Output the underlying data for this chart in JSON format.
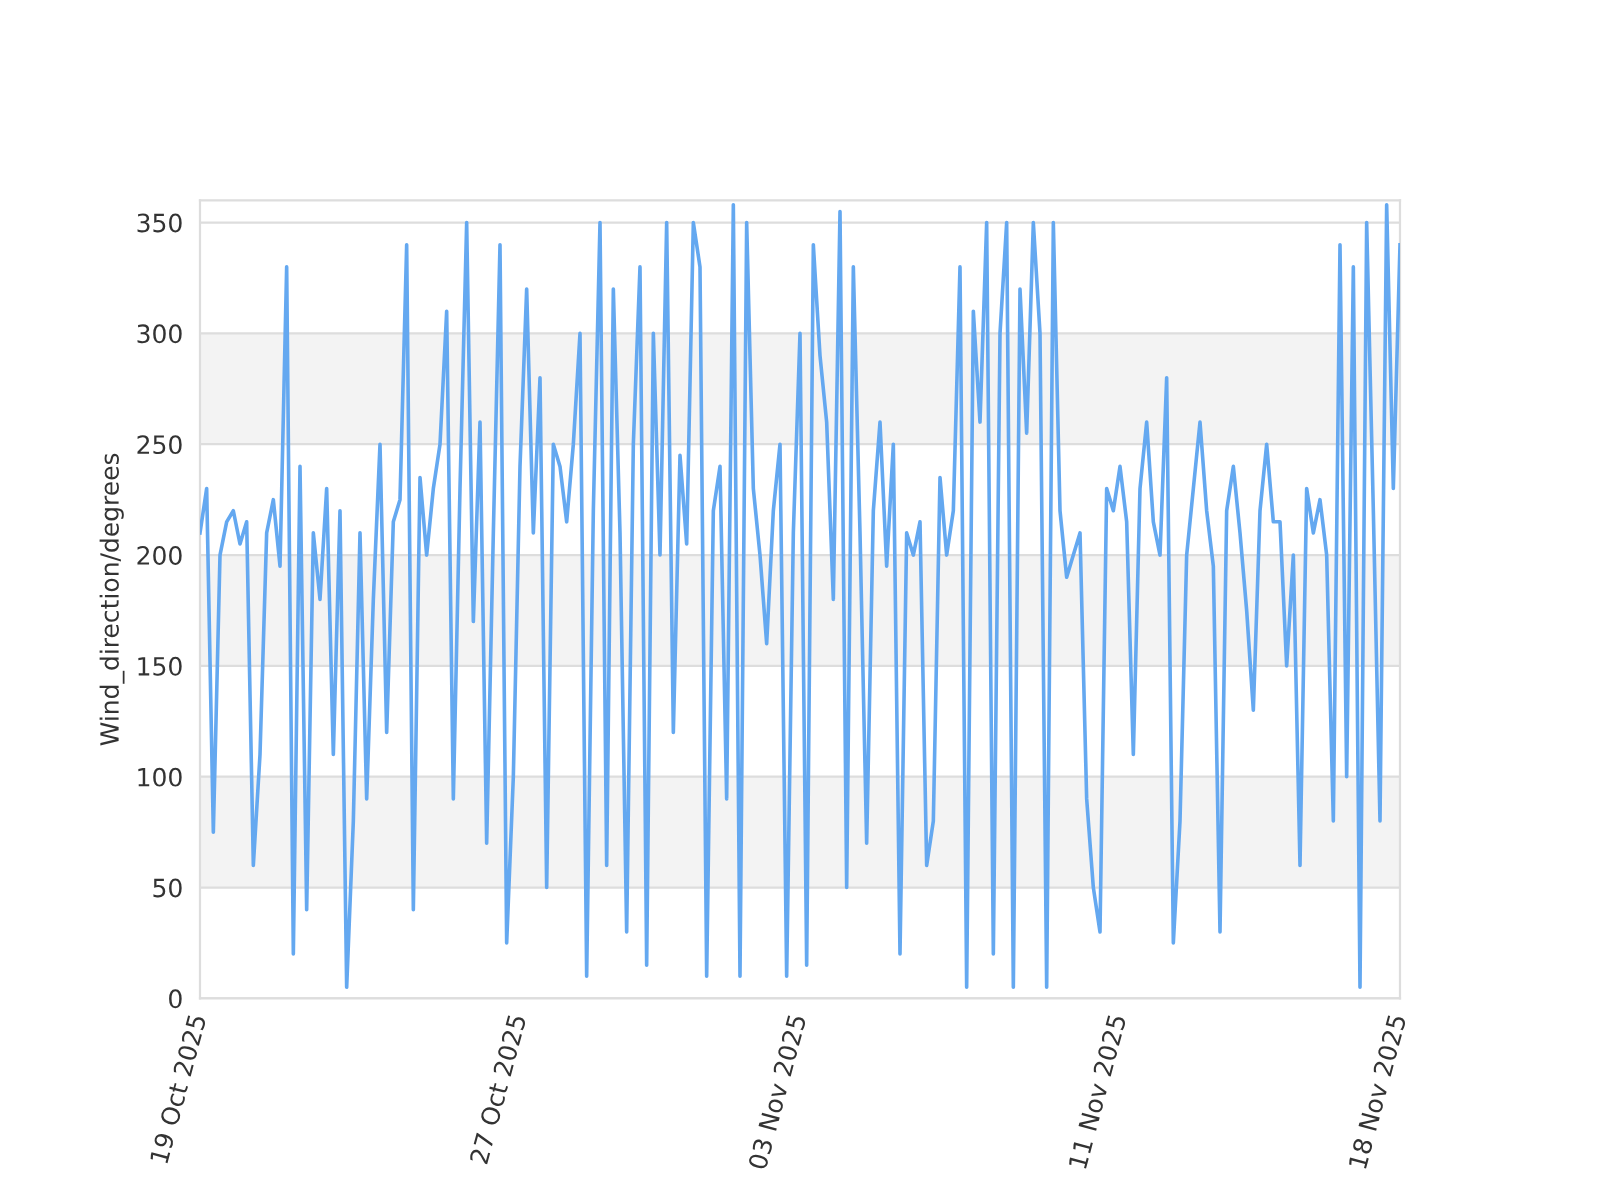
{
  "chart_data": {
    "type": "line",
    "ylabel": "Wind_direction/degrees",
    "x": [
      "2025-10-19T00:00",
      "2025-10-19T04:00",
      "2025-10-19T08:00",
      "2025-10-19T12:00",
      "2025-10-19T16:00",
      "2025-10-19T20:00",
      "2025-10-20T00:00",
      "2025-10-20T04:00",
      "2025-10-20T08:00",
      "2025-10-20T12:00",
      "2025-10-20T16:00",
      "2025-10-20T20:00",
      "2025-10-21T00:00",
      "2025-10-21T04:00",
      "2025-10-21T08:00",
      "2025-10-21T12:00",
      "2025-10-21T16:00",
      "2025-10-21T20:00",
      "2025-10-22T00:00",
      "2025-10-22T04:00",
      "2025-10-22T08:00",
      "2025-10-22T12:00",
      "2025-10-22T16:00",
      "2025-10-22T20:00",
      "2025-10-23T00:00",
      "2025-10-23T04:00",
      "2025-10-23T08:00",
      "2025-10-23T12:00",
      "2025-10-23T16:00",
      "2025-10-23T20:00",
      "2025-10-24T00:00",
      "2025-10-24T04:00",
      "2025-10-24T08:00",
      "2025-10-24T12:00",
      "2025-10-24T16:00",
      "2025-10-24T20:00",
      "2025-10-25T00:00",
      "2025-10-25T04:00",
      "2025-10-25T08:00",
      "2025-10-25T12:00",
      "2025-10-25T16:00",
      "2025-10-25T20:00",
      "2025-10-26T00:00",
      "2025-10-26T04:00",
      "2025-10-26T08:00",
      "2025-10-26T12:00",
      "2025-10-26T16:00",
      "2025-10-26T20:00",
      "2025-10-27T00:00",
      "2025-10-27T04:00",
      "2025-10-27T08:00",
      "2025-10-27T12:00",
      "2025-10-27T16:00",
      "2025-10-27T20:00",
      "2025-10-28T00:00",
      "2025-10-28T04:00",
      "2025-10-28T08:00",
      "2025-10-28T12:00",
      "2025-10-28T16:00",
      "2025-10-28T20:00",
      "2025-10-29T00:00",
      "2025-10-29T04:00",
      "2025-10-29T08:00",
      "2025-10-29T12:00",
      "2025-10-29T16:00",
      "2025-10-29T20:00",
      "2025-10-30T00:00",
      "2025-10-30T04:00",
      "2025-10-30T08:00",
      "2025-10-30T12:00",
      "2025-10-30T16:00",
      "2025-10-30T20:00",
      "2025-10-31T00:00",
      "2025-10-31T04:00",
      "2025-10-31T08:00",
      "2025-10-31T12:00",
      "2025-10-31T16:00",
      "2025-10-31T20:00",
      "2025-11-01T00:00",
      "2025-11-01T04:00",
      "2025-11-01T08:00",
      "2025-11-01T12:00",
      "2025-11-01T16:00",
      "2025-11-01T20:00",
      "2025-11-02T00:00",
      "2025-11-02T04:00",
      "2025-11-02T08:00",
      "2025-11-02T12:00",
      "2025-11-02T16:00",
      "2025-11-02T20:00",
      "2025-11-03T00:00",
      "2025-11-03T04:00",
      "2025-11-03T08:00",
      "2025-11-03T12:00",
      "2025-11-03T16:00",
      "2025-11-03T20:00",
      "2025-11-04T00:00",
      "2025-11-04T04:00",
      "2025-11-04T08:00",
      "2025-11-04T12:00",
      "2025-11-04T16:00",
      "2025-11-04T20:00",
      "2025-11-05T00:00",
      "2025-11-05T04:00",
      "2025-11-05T08:00",
      "2025-11-05T12:00",
      "2025-11-05T16:00",
      "2025-11-05T20:00",
      "2025-11-06T00:00",
      "2025-11-06T04:00",
      "2025-11-06T08:00",
      "2025-11-06T12:00",
      "2025-11-06T16:00",
      "2025-11-06T20:00",
      "2025-11-07T00:00",
      "2025-11-07T04:00",
      "2025-11-07T08:00",
      "2025-11-07T12:00",
      "2025-11-07T16:00",
      "2025-11-07T20:00",
      "2025-11-08T00:00",
      "2025-11-08T04:00",
      "2025-11-08T08:00",
      "2025-11-08T12:00",
      "2025-11-08T16:00",
      "2025-11-08T20:00",
      "2025-11-09T00:00",
      "2025-11-09T04:00",
      "2025-11-09T08:00",
      "2025-11-09T12:00",
      "2025-11-09T16:00",
      "2025-11-09T20:00",
      "2025-11-10T00:00",
      "2025-11-10T04:00",
      "2025-11-10T08:00",
      "2025-11-10T12:00",
      "2025-11-10T16:00",
      "2025-11-10T20:00",
      "2025-11-11T00:00",
      "2025-11-11T04:00",
      "2025-11-11T08:00",
      "2025-11-11T12:00",
      "2025-11-11T16:00",
      "2025-11-11T20:00",
      "2025-11-12T00:00",
      "2025-11-12T04:00",
      "2025-11-12T08:00",
      "2025-11-12T12:00",
      "2025-11-12T16:00",
      "2025-11-12T20:00",
      "2025-11-13T00:00",
      "2025-11-13T04:00",
      "2025-11-13T08:00",
      "2025-11-13T12:00",
      "2025-11-13T16:00",
      "2025-11-13T20:00",
      "2025-11-14T00:00",
      "2025-11-14T04:00",
      "2025-11-14T08:00",
      "2025-11-14T12:00",
      "2025-11-14T16:00",
      "2025-11-14T20:00",
      "2025-11-15T00:00",
      "2025-11-15T04:00",
      "2025-11-15T08:00",
      "2025-11-15T12:00",
      "2025-11-15T16:00",
      "2025-11-15T20:00",
      "2025-11-16T00:00",
      "2025-11-16T04:00",
      "2025-11-16T08:00",
      "2025-11-16T12:00",
      "2025-11-16T16:00",
      "2025-11-16T20:00",
      "2025-11-17T00:00",
      "2025-11-17T04:00",
      "2025-11-17T08:00",
      "2025-11-17T12:00",
      "2025-11-17T16:00",
      "2025-11-17T20:00",
      "2025-11-18T00:00"
    ],
    "series": [
      {
        "color": "#64a8f0",
        "values": [
          210,
          230,
          75,
          200,
          215,
          220,
          205,
          215,
          60,
          110,
          210,
          225,
          195,
          330,
          20,
          240,
          40,
          210,
          180,
          230,
          110,
          220,
          5,
          80,
          210,
          90,
          180,
          250,
          120,
          215,
          225,
          340,
          40,
          235,
          200,
          230,
          250,
          310,
          90,
          230,
          350,
          170,
          260,
          70,
          210,
          340,
          25,
          100,
          240,
          320,
          210,
          280,
          50,
          250,
          240,
          215,
          250,
          300,
          10,
          220,
          350,
          60,
          320,
          210,
          30,
          250,
          330,
          15,
          300,
          200,
          350,
          120,
          245,
          205,
          350,
          330,
          10,
          220,
          240,
          90,
          358,
          10,
          350,
          230,
          200,
          160,
          220,
          250,
          10,
          210,
          300,
          15,
          340,
          290,
          260,
          180,
          355,
          50,
          330,
          210,
          70,
          220,
          260,
          195,
          250,
          20,
          210,
          200,
          215,
          60,
          80,
          235,
          200,
          220,
          330,
          5,
          310,
          260,
          350,
          20,
          300,
          350,
          5,
          320,
          255,
          350,
          300,
          5,
          350,
          220,
          190,
          200,
          210,
          90,
          50,
          30,
          230,
          220,
          240,
          215,
          110,
          230,
          260,
          215,
          200,
          280,
          25,
          80,
          200,
          230,
          260,
          220,
          195,
          30,
          220,
          240,
          210,
          175,
          130,
          220,
          250,
          215,
          215,
          150,
          200,
          60,
          230,
          210,
          225,
          200,
          80,
          340,
          100,
          330,
          5,
          350,
          220,
          80,
          358,
          230,
          340
        ]
      }
    ],
    "xlim": [
      "2025-10-19",
      "2025-11-18"
    ],
    "xticks": [
      {
        "value": "2025-10-19",
        "label": "19 Oct 2025"
      },
      {
        "value": "2025-10-27",
        "label": "27 Oct 2025"
      },
      {
        "value": "2025-11-03",
        "label": "03 Nov 2025"
      },
      {
        "value": "2025-11-11",
        "label": "11 Nov 2025"
      },
      {
        "value": "2025-11-18",
        "label": "18 Nov 2025"
      }
    ],
    "ylim": [
      0,
      360
    ],
    "yticks": [
      0,
      50,
      100,
      150,
      200,
      250,
      300,
      350
    ],
    "bands": [
      {
        "axis": "y",
        "from": 50,
        "to": 100,
        "color": "#f3f3f3"
      },
      {
        "axis": "y",
        "from": 150,
        "to": 200,
        "color": "#f3f3f3"
      },
      {
        "axis": "y",
        "from": 250,
        "to": 300,
        "color": "#f3f3f3"
      }
    ],
    "grid": "y",
    "marker": "none",
    "line_style": "solid"
  }
}
